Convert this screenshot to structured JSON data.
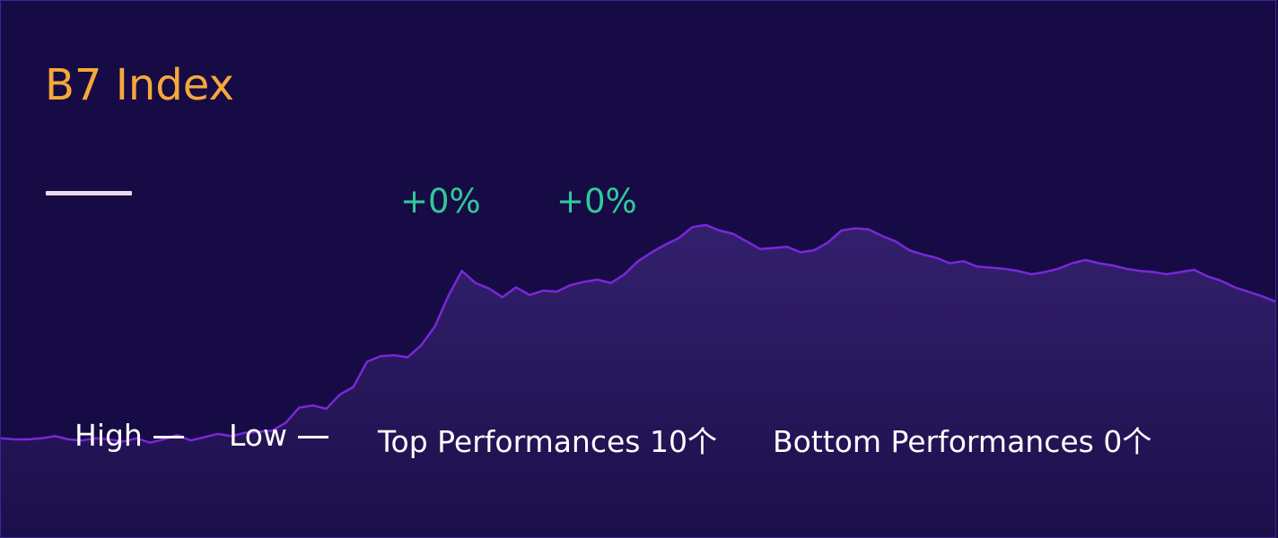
{
  "title": "B7 Index",
  "change_labels": [
    "+0%",
    "+0%"
  ],
  "legend": {
    "high": "High",
    "low": "Low",
    "top": "Top Performances 10个",
    "bottom": "Bottom Performances 0个"
  },
  "colors": {
    "background": "#160b44",
    "title": "#f5a83a",
    "change": "#2fc99a",
    "line": "#7a27d8",
    "area_top": "#33206e",
    "text": "#ffffff"
  },
  "chart_data": {
    "type": "area",
    "y": [
      10,
      9,
      9,
      10,
      12,
      9,
      8,
      10,
      9,
      7,
      10,
      6,
      9,
      13,
      8,
      11,
      14,
      12,
      15,
      16,
      17,
      24,
      38,
      40,
      37,
      50,
      57,
      80,
      85,
      86,
      84,
      95,
      112,
      140,
      163,
      152,
      147,
      139,
      148,
      141,
      145,
      144,
      150,
      153,
      155,
      152,
      160,
      172,
      180,
      187,
      193,
      203,
      205,
      200,
      197,
      190,
      183,
      184,
      185,
      180,
      182,
      189,
      200,
      202,
      201,
      195,
      190,
      182,
      178,
      175,
      170,
      172,
      167,
      166,
      165,
      163,
      160,
      162,
      165,
      170,
      173,
      170,
      168,
      165,
      163,
      162,
      160,
      162,
      164,
      158,
      154,
      148,
      144,
      140,
      135
    ]
  }
}
